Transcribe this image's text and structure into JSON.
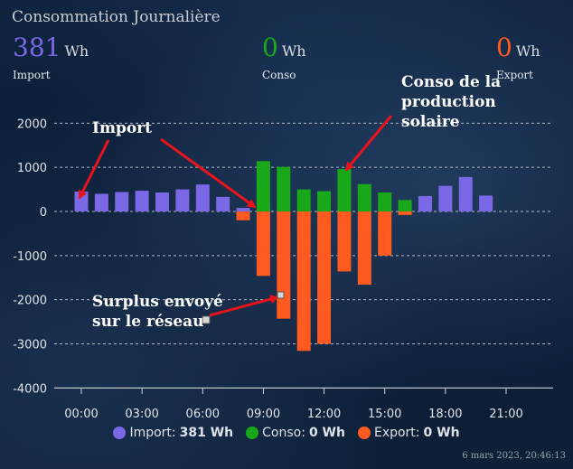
{
  "card": {
    "title": "Consommation Journalière",
    "timestamp": "6 mars 2023, 20:46:13"
  },
  "kpis": {
    "import": {
      "value": "381",
      "unit": "Wh",
      "label": "Import",
      "color": "#7b68e6"
    },
    "conso": {
      "value": "0",
      "unit": "Wh",
      "label": "Conso",
      "color": "#18a81a"
    },
    "export": {
      "value": "0",
      "unit": "Wh",
      "label": "Export",
      "color": "#ff5a1f"
    }
  },
  "annotations": {
    "import": "Import",
    "conso": "Conso de la\nproduction\nsolaire",
    "surplus": "Surplus envoyé\nsur le réseau"
  },
  "legend": [
    {
      "name": "Import:",
      "value": "381 Wh",
      "color": "#7b68e6"
    },
    {
      "name": "Conso:",
      "value": "0 Wh",
      "color": "#18a81a"
    },
    {
      "name": "Export:",
      "value": "0 Wh",
      "color": "#ff5a1f"
    }
  ],
  "chart_data": {
    "type": "bar",
    "ylim": [
      -4000,
      2000
    ],
    "yticks": [
      2000,
      1000,
      0,
      -1000,
      -2000,
      -3000,
      -4000
    ],
    "xticks": [
      "00:00",
      "03:00",
      "06:00",
      "09:00",
      "12:00",
      "15:00",
      "18:00",
      "21:00"
    ],
    "xtick_hours": [
      0,
      3,
      6,
      9,
      12,
      15,
      18,
      21
    ],
    "hours": [
      0,
      1,
      2,
      3,
      4,
      5,
      6,
      7,
      8,
      9,
      10,
      11,
      12,
      13,
      14,
      15,
      16,
      17,
      18,
      19,
      20
    ],
    "grid": true,
    "legend_position": "bottom",
    "series": [
      {
        "name": "Import",
        "color": "#7b68e6",
        "values": [
          450,
          400,
          440,
          470,
          430,
          500,
          610,
          330,
          80,
          100,
          0,
          0,
          0,
          0,
          0,
          0,
          60,
          350,
          580,
          780,
          360
        ]
      },
      {
        "name": "Conso",
        "color": "#18a81a",
        "values": [
          0,
          0,
          0,
          0,
          0,
          0,
          0,
          0,
          0,
          1140,
          1010,
          500,
          460,
          960,
          620,
          430,
          260,
          0,
          0,
          0,
          0
        ]
      },
      {
        "name": "Export",
        "color": "#ff5a1f",
        "values": [
          0,
          0,
          0,
          0,
          0,
          0,
          0,
          0,
          -200,
          -1460,
          -2430,
          -3160,
          -3000,
          -1360,
          -1660,
          -1000,
          -80,
          0,
          0,
          0,
          0
        ]
      }
    ]
  }
}
